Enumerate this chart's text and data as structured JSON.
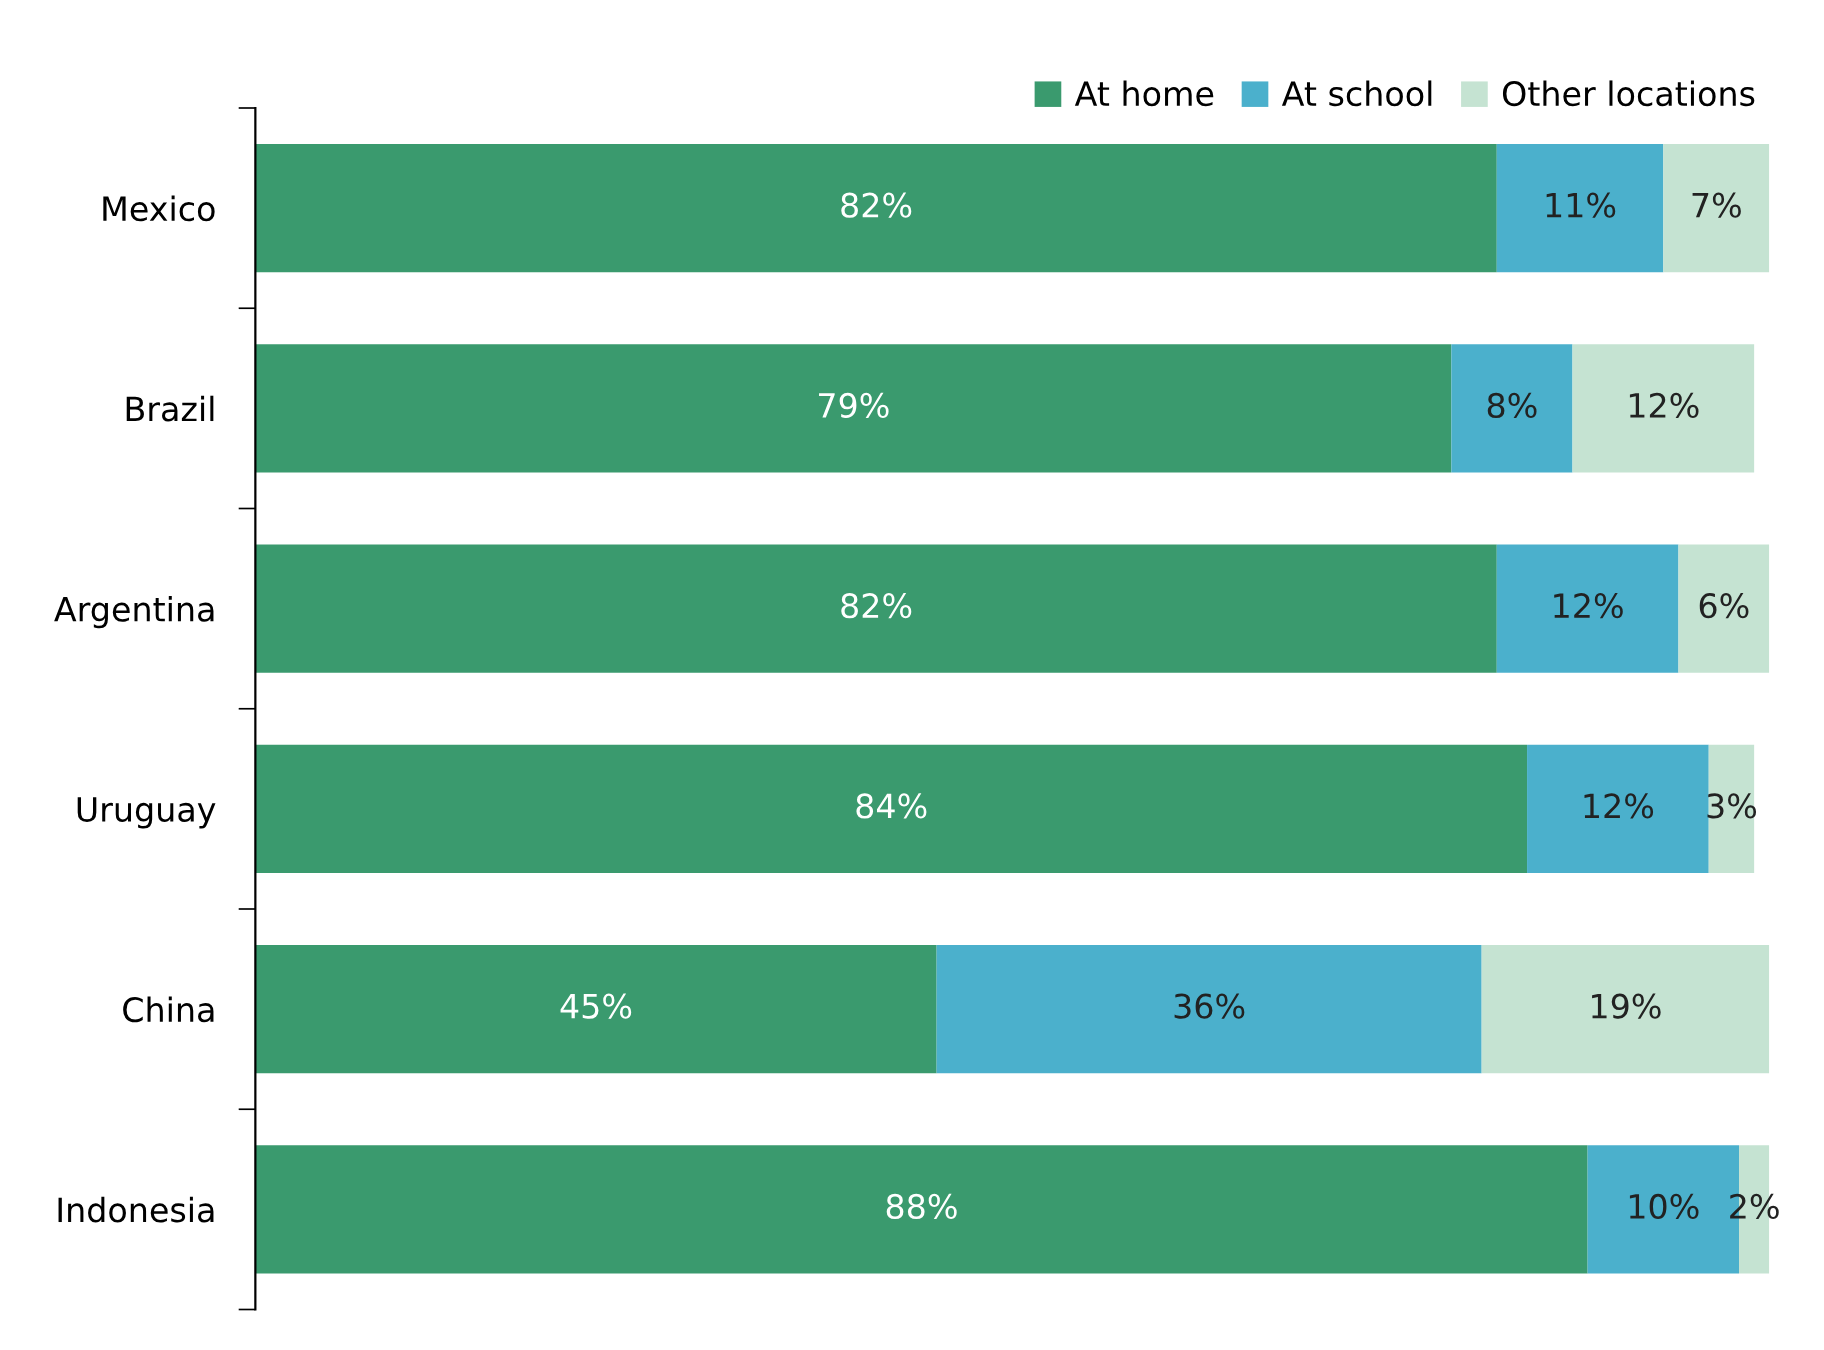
{
  "chart_data": {
    "type": "bar",
    "orientation": "horizontal",
    "stacked": true,
    "categories": [
      "Mexico",
      "Brazil",
      "Argentina",
      "Uruguay",
      "China",
      "Indonesia"
    ],
    "series": [
      {
        "name": "At home",
        "color": "#3a9a6e",
        "values": [
          82,
          79,
          82,
          84,
          45,
          88
        ],
        "value_labels": [
          "82%",
          "79%",
          "82%",
          "84%",
          "45%",
          "88%"
        ]
      },
      {
        "name": "At school",
        "color": "#4bb0cc",
        "values": [
          11,
          8,
          12,
          12,
          36,
          10
        ],
        "value_labels": [
          "11%",
          "8%",
          "12%",
          "12%",
          "36%",
          "10%"
        ]
      },
      {
        "name": "Other locations",
        "color": "#c5e3d2",
        "values": [
          7,
          12,
          6,
          3,
          19,
          2
        ],
        "value_labels": [
          "7%",
          "12%",
          "6%",
          "3%",
          "19%",
          "2%"
        ]
      }
    ],
    "legend": "top right"
  }
}
